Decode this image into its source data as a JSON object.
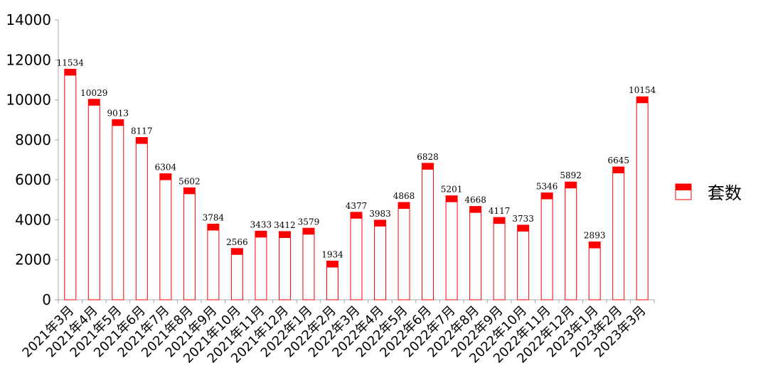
{
  "chart_data": {
    "type": "bar",
    "title": "",
    "xlabel": "",
    "ylabel": "",
    "ylim": [
      0,
      14000
    ],
    "yticks": [
      0,
      2000,
      4000,
      6000,
      8000,
      10000,
      12000,
      14000
    ],
    "grid": false,
    "legend_position": "right",
    "categories": [
      "2021年3月",
      "2021年4月",
      "2021年5月",
      "2021年6月",
      "2021年7月",
      "2021年8月",
      "2021年9月",
      "2021年10月",
      "2021年11月",
      "2021年12月",
      "2022年1月",
      "2022年2月",
      "2022年3月",
      "2022年4月",
      "2022年5月",
      "2022年6月",
      "2022年7月",
      "2022年8月",
      "2022年9月",
      "2022年10月",
      "2022年11月",
      "2022年12月",
      "2023年1月",
      "2023年2月",
      "2023年3月"
    ],
    "series": [
      {
        "name": "套数",
        "color": "#ff0000",
        "values": [
          11534,
          10029,
          9013,
          8117,
          6304,
          5602,
          3784,
          2566,
          3433,
          3412,
          3579,
          1934,
          4377,
          3983,
          4868,
          6828,
          5201,
          4668,
          4117,
          3733,
          5346,
          5892,
          2893,
          6645,
          10154
        ]
      }
    ]
  }
}
